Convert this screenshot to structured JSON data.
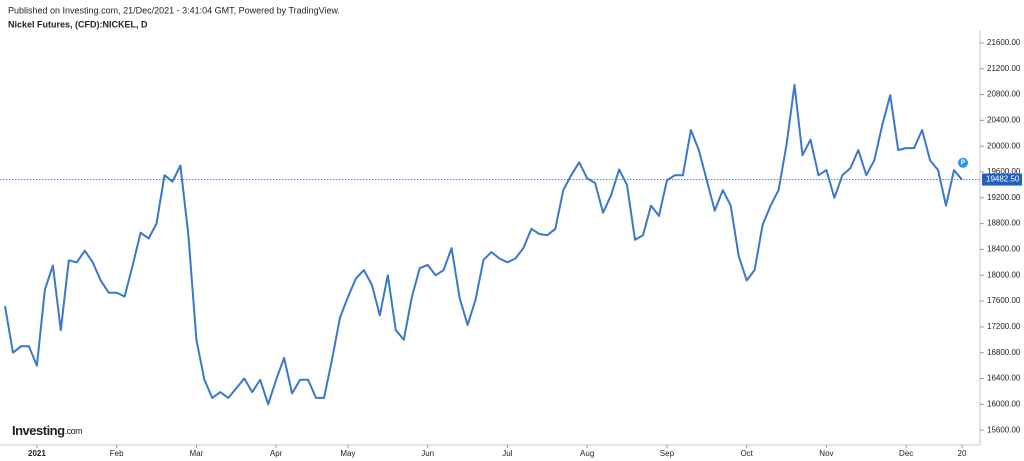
{
  "chart_data": {
    "type": "line",
    "published": "Published on Investing.com, 21/Dec/2021 - 3:41:04 GMT, Powered by TradingView.",
    "title": "Nickel Futures, (CFD):NICKEL, D",
    "brand": "Investing",
    "brand_suffix": ".com",
    "marker_label": "P",
    "color": "#3a78c9",
    "grid": false,
    "ylim": [
      15370,
      21800
    ],
    "yticks": [
      {
        "value": 15600,
        "label": "15600.00"
      },
      {
        "value": 16000,
        "label": "16000.00"
      },
      {
        "value": 16400,
        "label": "16400.00"
      },
      {
        "value": 16800,
        "label": "16800.00"
      },
      {
        "value": 17200,
        "label": "17200.00"
      },
      {
        "value": 17600,
        "label": "17600.00"
      },
      {
        "value": 18000,
        "label": "18000.00"
      },
      {
        "value": 18400,
        "label": "18400.00"
      },
      {
        "value": 18800,
        "label": "18800.00"
      },
      {
        "value": 19200,
        "label": "19200.00"
      },
      {
        "value": 19600,
        "label": "19600.00"
      },
      {
        "value": 20000,
        "label": "20000.00"
      },
      {
        "value": 20400,
        "label": "20400.00"
      },
      {
        "value": 20800,
        "label": "20800.00"
      },
      {
        "value": 21200,
        "label": "21200.00"
      },
      {
        "value": 21600,
        "label": "21600.00"
      }
    ],
    "last_price": {
      "value": 19482.5,
      "label": "19482.50"
    },
    "categories": [
      null,
      null,
      null,
      null,
      "2021",
      null,
      null,
      null,
      null,
      null,
      null,
      null,
      null,
      null,
      "Feb",
      null,
      null,
      null,
      null,
      null,
      null,
      null,
      null,
      null,
      "Mar",
      null,
      null,
      null,
      null,
      null,
      null,
      null,
      null,
      null,
      "Apr",
      null,
      null,
      null,
      null,
      null,
      null,
      null,
      null,
      "May",
      null,
      null,
      null,
      null,
      null,
      null,
      null,
      null,
      null,
      "Jun",
      null,
      null,
      null,
      null,
      null,
      null,
      null,
      null,
      null,
      "Jul",
      null,
      null,
      null,
      null,
      null,
      null,
      null,
      null,
      null,
      "Aug",
      null,
      null,
      null,
      null,
      null,
      null,
      null,
      null,
      null,
      "Sep",
      null,
      null,
      null,
      null,
      null,
      null,
      null,
      null,
      null,
      "Oct",
      null,
      null,
      null,
      null,
      null,
      null,
      null,
      null,
      null,
      "Nov",
      null,
      null,
      null,
      null,
      null,
      null,
      null,
      null,
      null,
      "Dec",
      null,
      null,
      null,
      null,
      null,
      null,
      "20"
    ],
    "values": [
      17520,
      16800,
      16900,
      16900,
      16600,
      17780,
      18150,
      17150,
      18230,
      18200,
      18380,
      18200,
      17920,
      17730,
      17730,
      17670,
      18150,
      18660,
      18570,
      18800,
      19550,
      19450,
      19700,
      18620,
      17000,
      16380,
      16100,
      16190,
      16100,
      16250,
      16400,
      16190,
      16380,
      16000,
      16380,
      16720,
      16170,
      16380,
      16380,
      16100,
      16100,
      16690,
      17340,
      17660,
      17950,
      18080,
      17850,
      17380,
      18000,
      17150,
      17000,
      17650,
      18110,
      18160,
      18000,
      18080,
      18420,
      17650,
      17230,
      17620,
      18240,
      18360,
      18260,
      18200,
      18260,
      18420,
      18720,
      18640,
      18620,
      18720,
      19320,
      19550,
      19750,
      19500,
      19430,
      18970,
      19240,
      19640,
      19400,
      18550,
      18620,
      19080,
      18920,
      19470,
      19550,
      19550,
      20250,
      19940,
      19470,
      19000,
      19320,
      19080,
      18300,
      17920,
      18080,
      18780,
      19080,
      19320,
      20020,
      20950,
      19860,
      20100,
      19550,
      19630,
      19200,
      19550,
      19660,
      19940,
      19550,
      19780,
      20330,
      20790,
      19940,
      19970,
      19970,
      20250,
      19780,
      19630,
      19080,
      19630,
      19480
    ]
  }
}
